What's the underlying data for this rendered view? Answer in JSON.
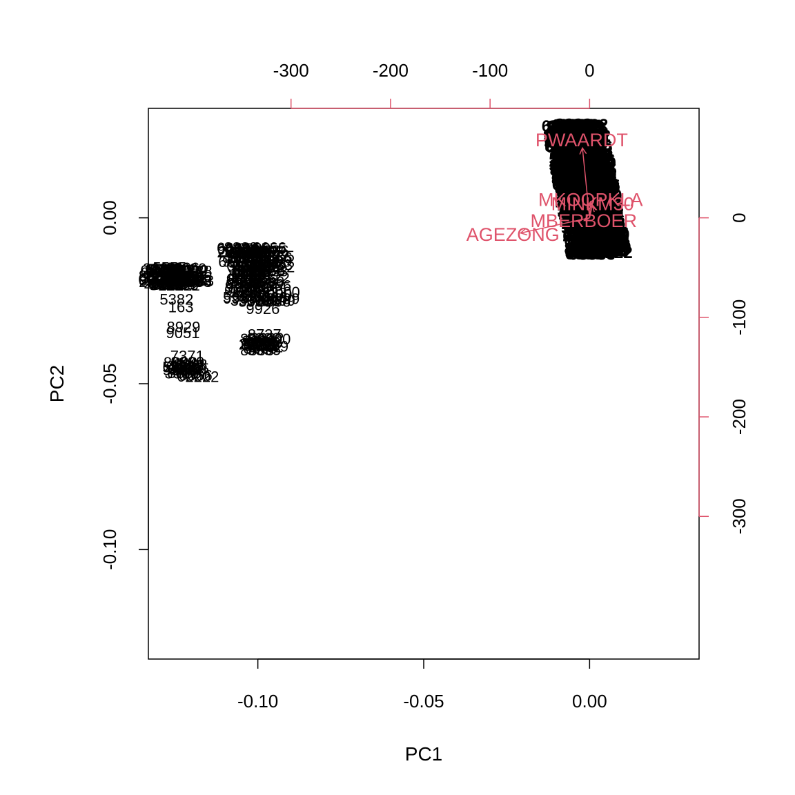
{
  "chart_data": {
    "type": "scatter",
    "subtype": "biplot",
    "xlabel": "PC1",
    "ylabel": "PC2",
    "xlim": [
      -0.133,
      0.033
    ],
    "ylim": [
      -0.133,
      0.033
    ],
    "x_ticks": [
      -0.1,
      -0.05,
      0.0
    ],
    "x_tick_labels": [
      "-0.10",
      "-0.05",
      "0.00"
    ],
    "y_ticks": [
      0.0,
      -0.05,
      -0.1
    ],
    "y_tick_labels": [
      "0.00",
      "-0.05",
      "-0.10"
    ],
    "top_axis_ticks": [
      -300,
      -200,
      -100,
      0
    ],
    "top_axis_labels": [
      "-300",
      "-200",
      "-100",
      "0"
    ],
    "right_axis_ticks": [
      0,
      -100,
      -200,
      -300
    ],
    "right_axis_labels": [
      "0",
      "-100",
      "-200",
      "-300"
    ],
    "loading_scale": 0.0003,
    "observation_labels": [
      {
        "text": "5382",
        "x": -0.1245,
        "y": -0.0262
      },
      {
        "text": "163",
        "x": -0.1232,
        "y": -0.0285
      },
      {
        "text": "8929",
        "x": -0.1224,
        "y": -0.0345
      },
      {
        "text": "9051",
        "x": -0.1226,
        "y": -0.0363
      },
      {
        "text": "7371",
        "x": -0.1213,
        "y": -0.0432
      },
      {
        "text": "9926",
        "x": -0.0985,
        "y": -0.029
      },
      {
        "text": "8737",
        "x": -0.098,
        "y": -0.0368
      },
      {
        "text": "2462",
        "x": -0.0975,
        "y": -0.0405
      }
    ],
    "variables": [
      {
        "name": "PWAARDT",
        "x": -8,
        "y": 78
      },
      {
        "name": "MKOOPKLA",
        "x": 1,
        "y": 18
      },
      {
        "name": "MINKM30",
        "x": 3,
        "y": 14
      },
      {
        "name": "MBERBOER",
        "x": -6,
        "y": -3
      },
      {
        "name": "AGEZONG",
        "x": -77,
        "y": -17
      }
    ],
    "colors": {
      "observations": "#000000",
      "variables": "#df536b"
    }
  }
}
